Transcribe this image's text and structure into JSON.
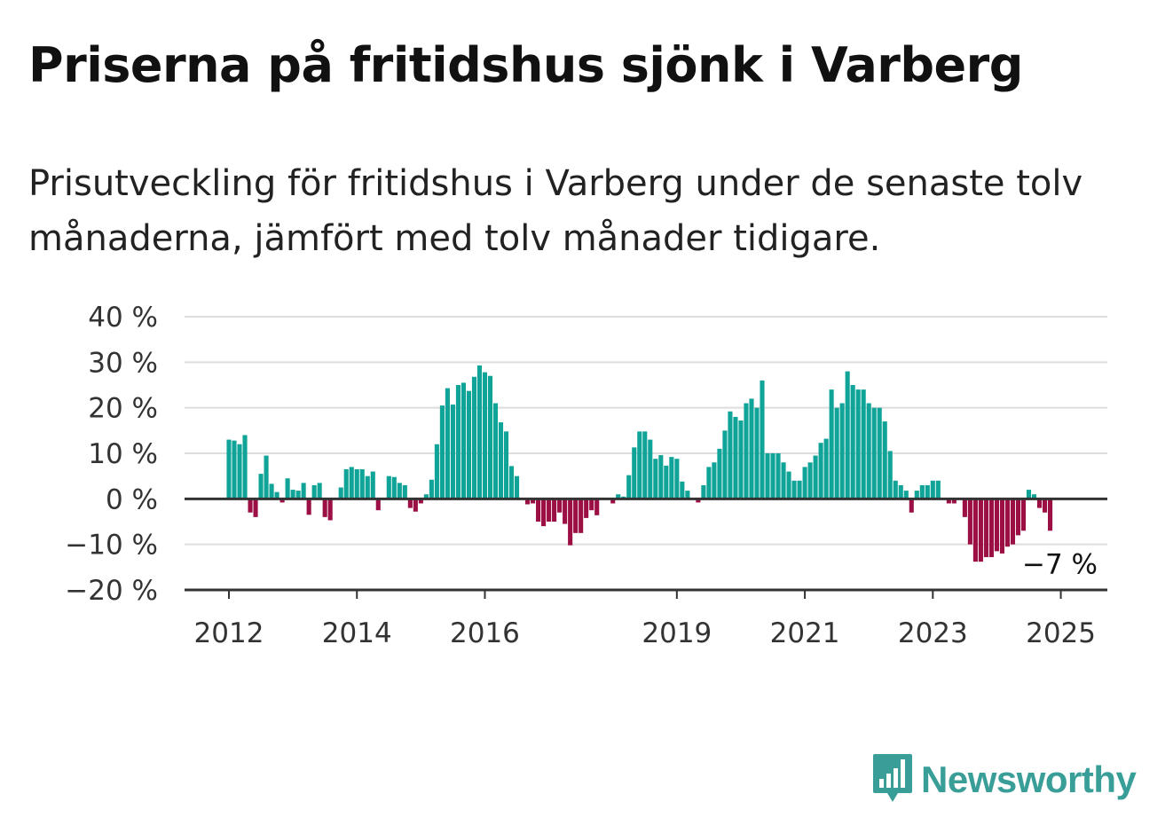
{
  "title": "Priserna på fritidshus sjönk i Varberg",
  "subtitle": "Prisutveckling för fritidshus i Varberg under de senaste tolv månaderna, jämfört med tolv månader tidigare.",
  "brand": {
    "name": "Newsworthy",
    "color": "#3a9e98"
  },
  "colors": {
    "positive": "#0fa497",
    "negative": "#9c0f44",
    "grid": "#dddddd",
    "axis": "#333333"
  },
  "chart_data": {
    "type": "bar",
    "x_unit": "month",
    "start": "2012-01",
    "ylim": [
      -20,
      40
    ],
    "y_ticks": [
      40,
      30,
      20,
      10,
      0,
      -10,
      -20
    ],
    "y_tick_labels": [
      "40 %",
      "30 %",
      "20 %",
      "10 %",
      "0 %",
      "−10 %",
      "−20 %"
    ],
    "x_tick_labels": [
      {
        "label": "2012",
        "month": "2012-01"
      },
      {
        "label": "2014",
        "month": "2014-01"
      },
      {
        "label": "2016",
        "month": "2016-01"
      },
      {
        "label": "2019",
        "month": "2019-01"
      },
      {
        "label": "2021",
        "month": "2021-01"
      },
      {
        "label": "2023",
        "month": "2023-01"
      },
      {
        "label": "2025",
        "month": "2025-01"
      }
    ],
    "grid": true,
    "last_value_label": "−7 %",
    "values": [
      13,
      12.8,
      12,
      14,
      -3,
      -4,
      5.5,
      9.5,
      3.3,
      1.5,
      -0.8,
      4.5,
      2,
      1.8,
      3.5,
      -3.5,
      3,
      3.5,
      -4,
      -4.7,
      0,
      2.5,
      6.5,
      7,
      6.5,
      6.5,
      5,
      6,
      -2.5,
      0,
      5,
      4.8,
      3.5,
      3,
      -2,
      -2.8,
      -1,
      1,
      4.2,
      12,
      20.5,
      24.3,
      20.7,
      25,
      25.5,
      23.7,
      26.8,
      29.3,
      27.8,
      27,
      21,
      16.8,
      14.8,
      7.2,
      5,
      0,
      -1.2,
      -1,
      -5,
      -6,
      -5,
      -5,
      -3,
      -5.5,
      -10.2,
      -7.5,
      -7.5,
      -4.2,
      -2.5,
      -3.6,
      0,
      0,
      -1,
      1,
      0.5,
      5.2,
      11.3,
      14.8,
      14.8,
      13,
      8.8,
      9.6,
      7.3,
      9.2,
      8.8,
      3.8,
      1.8,
      0,
      -0.8,
      3,
      7,
      8,
      11,
      15,
      19.2,
      18,
      17.2,
      21,
      22,
      20,
      26,
      10,
      10,
      10,
      8,
      6,
      4,
      4,
      7,
      8,
      9.5,
      12.3,
      13.2,
      24,
      20,
      21,
      28,
      25,
      24,
      24,
      21,
      20,
      20,
      17,
      10.5,
      4,
      3,
      1.8,
      -3,
      1.8,
      3,
      3,
      4,
      4,
      0,
      -1,
      -1,
      0,
      -4,
      -10,
      -13.8,
      -13.8,
      -12.8,
      -12.8,
      -11.5,
      -12,
      -10.5,
      -10,
      -8,
      -7,
      2,
      1,
      -2,
      -3,
      -7
    ]
  }
}
